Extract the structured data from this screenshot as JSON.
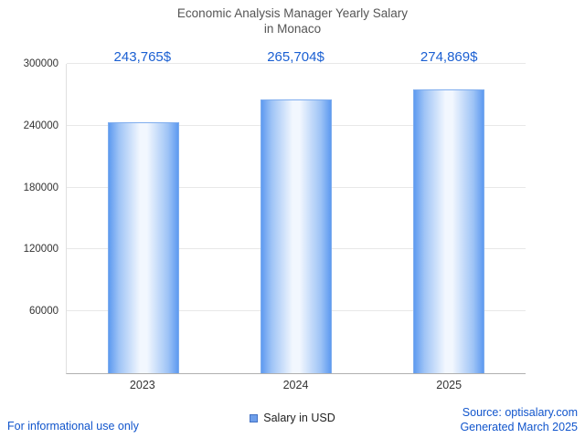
{
  "title": {
    "line1": "Economic Analysis Manager Yearly Salary",
    "line2": "in Monaco"
  },
  "chart_data": {
    "type": "bar",
    "title": "Economic Analysis Manager Yearly Salary in Monaco",
    "categories": [
      "2023",
      "2024",
      "2025"
    ],
    "values": [
      243765,
      265704,
      274869
    ],
    "value_labels": [
      "243,765$",
      "265,704$",
      "274,869$"
    ],
    "series_name": "Salary in USD",
    "xlabel": "",
    "ylabel": "",
    "ylim": [
      0,
      300000
    ],
    "yticks": [
      60000,
      120000,
      180000,
      240000,
      300000
    ],
    "ytick_labels": [
      "60000",
      "120000",
      "180000",
      "240000",
      "300000"
    ],
    "grid": true,
    "legend": "Salary in USD",
    "legend_position": "bottom",
    "bar_edge_color": "#5e9af0",
    "bar_center_color": "#f2f7fe",
    "value_label_color": "#1a5fd2"
  },
  "footer": {
    "left": "For informational use only",
    "right_line1": "Source: optisalary.com",
    "right_line2": "Generated March 2025"
  },
  "colors": {
    "title_text": "#555555",
    "axis_text": "#333333",
    "link_blue": "#1155cc",
    "gridline": "#e8e8e8"
  }
}
